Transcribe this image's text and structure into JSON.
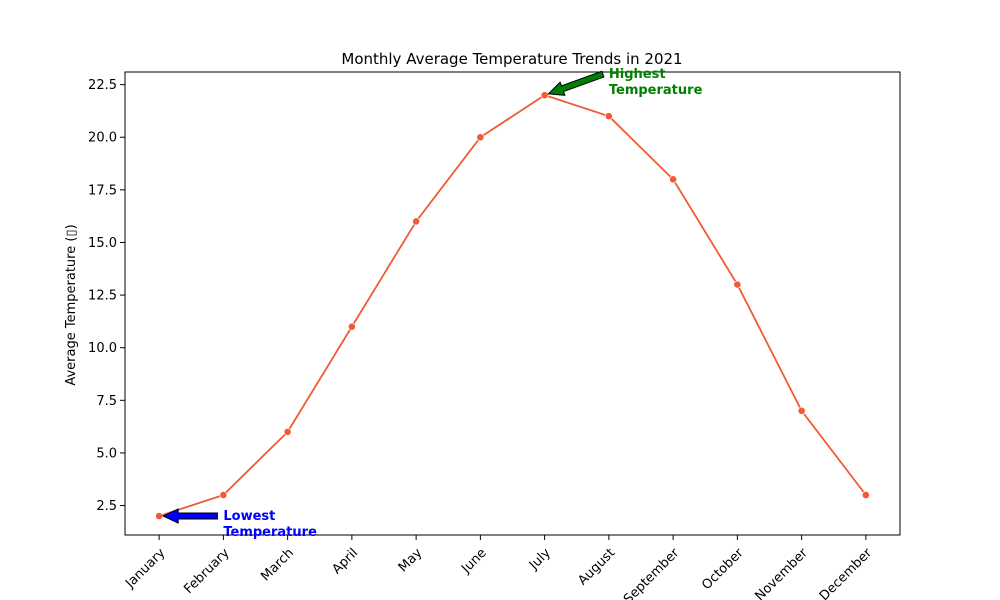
{
  "chart_data": {
    "type": "line",
    "title": "Monthly Average Temperature Trends in 2021",
    "xlabel": "",
    "ylabel": "Average Temperature (▯)",
    "categories": [
      "January",
      "February",
      "March",
      "April",
      "May",
      "June",
      "July",
      "August",
      "September",
      "October",
      "November",
      "December"
    ],
    "series": [
      {
        "values": [
          2,
          3,
          6,
          11,
          16,
          20,
          22,
          21,
          18,
          13,
          7,
          3
        ],
        "color": "#f05a35",
        "marker": "circle"
      }
    ],
    "ylim": [
      1.1,
      23.1
    ],
    "yticks": [
      2.5,
      5.0,
      7.5,
      10.0,
      12.5,
      15.0,
      17.5,
      20.0,
      22.5
    ],
    "ytick_labels": [
      "2.5",
      "5.0",
      "7.5",
      "10.0",
      "12.5",
      "15.0",
      "17.5",
      "20.0",
      "22.5"
    ],
    "grid": false,
    "xtick_rotation": 45,
    "annotations": [
      {
        "text_lines": [
          "Highest",
          "Temperature"
        ],
        "target_category": "July",
        "target_value": 22,
        "text_category_offset": 1,
        "text_value": 23.0,
        "color": "#008000"
      },
      {
        "text_lines": [
          "Lowest",
          "Temperature"
        ],
        "target_category": "January",
        "target_value": 2,
        "text_category_offset": 1,
        "text_value": 2.0,
        "color": "#0000ff"
      }
    ]
  }
}
